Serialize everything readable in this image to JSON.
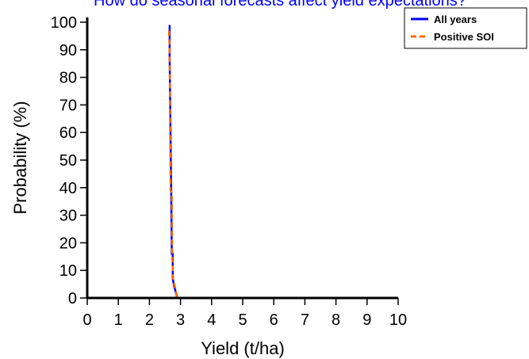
{
  "chart_data": {
    "type": "line",
    "title": "How do seasonal forecasts affect yield expectations?",
    "xlabel": "Yield (t/ha)",
    "ylabel": "Probability (%)",
    "xlim": [
      0,
      10
    ],
    "ylim": [
      0,
      100
    ],
    "xticks": [
      "0",
      "1",
      "2",
      "3",
      "4",
      "5",
      "6",
      "7",
      "8",
      "9",
      "10"
    ],
    "yticks": [
      "0",
      "10",
      "20",
      "30",
      "40",
      "50",
      "60",
      "70",
      "80",
      "90",
      "100"
    ],
    "grid": false,
    "legend_position": "top-right",
    "series": [
      {
        "name": "All years",
        "color": "#0000ff",
        "dash": "solid",
        "x": [
          2.65,
          2.65,
          2.7,
          2.72,
          2.75,
          2.75,
          2.8,
          2.9
        ],
        "y": [
          99,
          88,
          39,
          16,
          16,
          7,
          4,
          0
        ]
      },
      {
        "name": "Positive SOI",
        "color": "#ff6600",
        "dash": "dashed",
        "x": [
          2.63,
          2.65,
          2.68,
          2.72,
          2.73,
          2.76,
          2.82,
          2.9
        ],
        "y": [
          97,
          90,
          39,
          38,
          17,
          7,
          4,
          0
        ]
      }
    ]
  }
}
